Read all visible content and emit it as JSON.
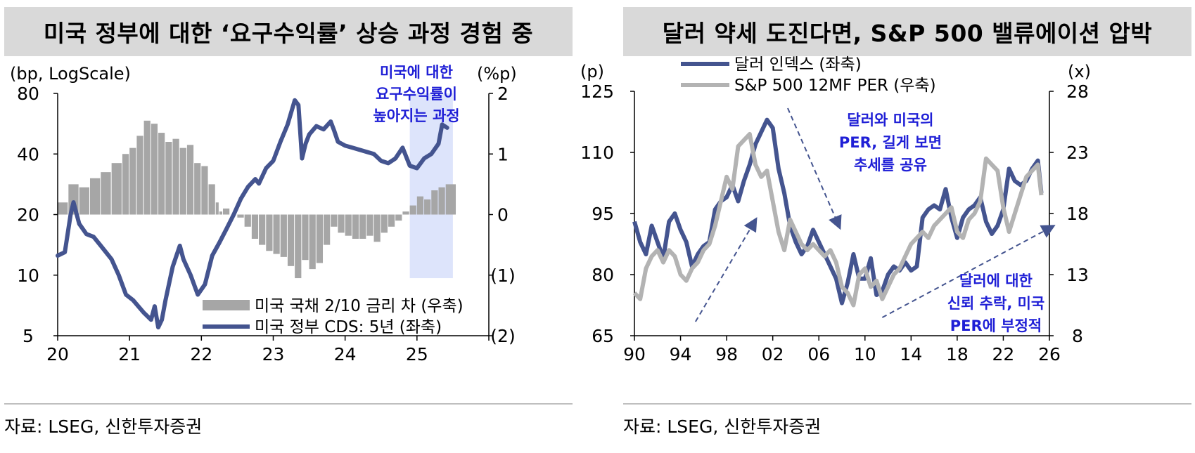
{
  "left": {
    "title": "미국 정부에 대한 ‘요구수익률’ 상승 과정 경험 중",
    "source": "자료: LSEG, 신한투자증권",
    "chart_data": {
      "type": "line",
      "title": "미국 정부에 대한 ‘요구수익률’ 상승 과정 경험 중",
      "y_left_unit": "(bp, LogScale)",
      "y_right_unit": "(%p)",
      "y_left_scale": "log",
      "y_left_ticks": [
        "80",
        "40",
        "20",
        "10",
        "5"
      ],
      "y_left_tick_values": [
        80,
        40,
        20,
        10,
        5
      ],
      "y_right_ticks": [
        "2",
        "1",
        "0",
        "(1)",
        "(2)"
      ],
      "y_right_tick_values": [
        2,
        1,
        0,
        -1,
        -2
      ],
      "x_ticks": [
        "20",
        "21",
        "22",
        "23",
        "24",
        "25"
      ],
      "x_tick_values": [
        2020,
        2021,
        2022,
        2023,
        2024,
        2025
      ],
      "xlim": [
        2020,
        2026
      ],
      "ylim_left": [
        5,
        80
      ],
      "ylim_right": [
        -2,
        2
      ],
      "legend_position": "bottom-right",
      "highlight": {
        "x_range": [
          2024.9,
          2025.5
        ],
        "color": "#dde4fb"
      },
      "annotation": "미국에 대한\n요구수익률이\n높아지는 과정",
      "annotation_color": "#1f1fd6",
      "series": [
        {
          "name": "미국 국채 2/10 금리 차 (우축)",
          "axis": "right",
          "style": "bar",
          "color": "#a6a6a6",
          "x": [
            2020.0,
            2020.15,
            2020.3,
            2020.45,
            2020.6,
            2020.75,
            2020.9,
            2021.0,
            2021.1,
            2021.2,
            2021.3,
            2021.4,
            2021.5,
            2021.6,
            2021.7,
            2021.8,
            2021.9,
            2022.0,
            2022.1,
            2022.2,
            2022.25,
            2022.3,
            2022.4,
            2022.5,
            2022.6,
            2022.7,
            2022.8,
            2022.9,
            2023.0,
            2023.1,
            2023.2,
            2023.3,
            2023.4,
            2023.5,
            2023.6,
            2023.7,
            2023.8,
            2023.9,
            2024.0,
            2024.1,
            2024.2,
            2024.3,
            2024.4,
            2024.5,
            2024.6,
            2024.7,
            2024.8,
            2024.9,
            2025.0,
            2025.1,
            2025.2,
            2025.3,
            2025.4
          ],
          "values": [
            0.2,
            0.5,
            0.45,
            0.6,
            0.7,
            0.85,
            1.0,
            1.1,
            1.3,
            1.55,
            1.5,
            1.35,
            1.2,
            1.25,
            1.1,
            1.15,
            0.85,
            0.8,
            0.5,
            0.2,
            0.05,
            0.1,
            0.0,
            -0.05,
            -0.2,
            -0.4,
            -0.5,
            -0.6,
            -0.65,
            -0.7,
            -0.85,
            -1.05,
            -0.75,
            -0.9,
            -0.8,
            -0.5,
            -0.2,
            -0.3,
            -0.35,
            -0.4,
            -0.4,
            -0.35,
            -0.45,
            -0.3,
            -0.2,
            -0.1,
            0.05,
            0.15,
            0.3,
            0.25,
            0.4,
            0.45,
            0.5
          ]
        },
        {
          "name": "미국 정부 CDS: 5년 (좌축)",
          "axis": "left",
          "style": "line",
          "color": "#44548f",
          "x": [
            2020.0,
            2020.1,
            2020.18,
            2020.22,
            2020.3,
            2020.4,
            2020.5,
            2020.6,
            2020.75,
            2020.85,
            2020.95,
            2021.05,
            2021.2,
            2021.3,
            2021.35,
            2021.4,
            2021.45,
            2021.5,
            2021.6,
            2021.7,
            2021.75,
            2021.85,
            2021.95,
            2022.05,
            2022.15,
            2022.25,
            2022.35,
            2022.45,
            2022.55,
            2022.65,
            2022.75,
            2022.8,
            2022.9,
            2023.0,
            2023.1,
            2023.2,
            2023.3,
            2023.35,
            2023.4,
            2023.45,
            2023.5,
            2023.6,
            2023.7,
            2023.8,
            2023.85,
            2023.9,
            2024.0,
            2024.1,
            2024.2,
            2024.3,
            2024.4,
            2024.5,
            2024.6,
            2024.7,
            2024.8,
            2024.9,
            2025.0,
            2025.1,
            2025.2,
            2025.3,
            2025.35,
            2025.42
          ],
          "values": [
            12.5,
            13.0,
            20.0,
            23.0,
            18.0,
            16.0,
            15.5,
            14.0,
            12.0,
            10.0,
            8.0,
            7.5,
            6.5,
            6.0,
            7.0,
            5.5,
            6.0,
            7.5,
            11.0,
            14.0,
            12.0,
            10.0,
            8.0,
            9.0,
            12.5,
            14.5,
            17.0,
            20.0,
            24.0,
            27.5,
            30.0,
            28.5,
            34.0,
            37.0,
            46.0,
            56.0,
            74.0,
            70.0,
            38.0,
            45.0,
            50.0,
            55.0,
            53.0,
            58.0,
            52.0,
            46.0,
            44.0,
            43.0,
            42.0,
            41.0,
            40.0,
            37.0,
            36.0,
            38.0,
            43.0,
            35.0,
            34.0,
            38.0,
            40.0,
            45.0,
            56.0,
            54.0
          ]
        }
      ]
    }
  },
  "right": {
    "title": "달러 약세 도진다면, S&P 500 밸류에이션 압박",
    "source": "자료: LSEG, 신한투자증권",
    "chart_data": {
      "type": "line",
      "title": "달러 약세 도진다면, S&P 500 밸류에이션 압박",
      "y_left_unit": "(p)",
      "y_right_unit": "(x)",
      "y_left_ticks": [
        "125",
        "110",
        "95",
        "80",
        "65"
      ],
      "y_left_tick_values": [
        125,
        110,
        95,
        80,
        65
      ],
      "y_right_ticks": [
        "28",
        "23",
        "18",
        "13",
        "8"
      ],
      "y_right_tick_values": [
        28,
        23,
        18,
        13,
        8
      ],
      "x_ticks": [
        "90",
        "94",
        "98",
        "02",
        "06",
        "10",
        "14",
        "18",
        "22",
        "26"
      ],
      "x_tick_values": [
        1990,
        1994,
        1998,
        2002,
        2006,
        2010,
        2014,
        2018,
        2022,
        2026
      ],
      "xlim": [
        1990,
        2026
      ],
      "ylim_left": [
        65,
        125
      ],
      "ylim_right": [
        8,
        28
      ],
      "legend_position": "top-center",
      "annotations": [
        {
          "text": "달러와 미국의\nPER, 길게 보면\n추세를 공유",
          "color": "#1f1fd6"
        },
        {
          "text": "달러에 대한\n신뢰 추락, 미국\nPER에 부정적",
          "color": "#1f1fd6"
        }
      ],
      "series": [
        {
          "name": "달러 인덱스 (좌축)",
          "axis": "left",
          "color": "#44548f",
          "x": [
            1990.0,
            1990.5,
            1991.0,
            1991.5,
            1992.0,
            1992.5,
            1993.0,
            1993.5,
            1994.0,
            1994.5,
            1995.0,
            1995.5,
            1996.0,
            1996.5,
            1997.0,
            1997.5,
            1998.0,
            1998.5,
            1999.0,
            1999.5,
            2000.0,
            2000.5,
            2001.0,
            2001.5,
            2002.0,
            2002.5,
            2003.0,
            2003.5,
            2004.0,
            2004.5,
            2005.0,
            2005.5,
            2006.0,
            2006.5,
            2007.0,
            2007.5,
            2008.0,
            2008.5,
            2009.0,
            2009.5,
            2010.0,
            2010.5,
            2011.0,
            2011.5,
            2012.0,
            2012.5,
            2013.0,
            2013.5,
            2014.0,
            2014.5,
            2015.0,
            2015.5,
            2016.0,
            2016.5,
            2017.0,
            2017.5,
            2018.0,
            2018.5,
            2019.0,
            2019.5,
            2020.0,
            2020.5,
            2021.0,
            2021.5,
            2022.0,
            2022.5,
            2023.0,
            2023.5,
            2024.0,
            2024.5,
            2025.0,
            2025.3
          ],
          "values": [
            93,
            88,
            85,
            92,
            88,
            84,
            93,
            95,
            91,
            88,
            82,
            85,
            87,
            88,
            96,
            98,
            99,
            102,
            98,
            103,
            107,
            112,
            115,
            118,
            116,
            106,
            100,
            92,
            88,
            85,
            87,
            91,
            88,
            85,
            82,
            79,
            73,
            78,
            85,
            79,
            79,
            84,
            75,
            76,
            80,
            82,
            81,
            83,
            81,
            82,
            94,
            96,
            97,
            96,
            101,
            94,
            89,
            94,
            96,
            97,
            99,
            93,
            90,
            92,
            96,
            106,
            103,
            102,
            103,
            106,
            108,
            100
          ]
        },
        {
          "name": "S&P 500 12MF PER (우축)",
          "axis": "right",
          "color": "#b3b3b3",
          "x": [
            1990.0,
            1990.5,
            1991.0,
            1991.5,
            1992.0,
            1992.5,
            1993.0,
            1993.5,
            1994.0,
            1994.5,
            1995.0,
            1995.5,
            1996.0,
            1996.5,
            1997.0,
            1997.5,
            1998.0,
            1998.5,
            1999.0,
            1999.5,
            2000.0,
            2000.5,
            2001.0,
            2001.5,
            2002.0,
            2002.5,
            2003.0,
            2003.5,
            2004.0,
            2004.5,
            2005.0,
            2005.5,
            2006.0,
            2006.5,
            2007.0,
            2007.5,
            2008.0,
            2008.5,
            2009.0,
            2009.5,
            2010.0,
            2010.5,
            2011.0,
            2011.5,
            2012.0,
            2012.5,
            2013.0,
            2013.5,
            2014.0,
            2014.5,
            2015.0,
            2015.5,
            2016.0,
            2016.5,
            2017.0,
            2017.5,
            2018.0,
            2018.5,
            2019.0,
            2019.5,
            2020.0,
            2020.5,
            2021.0,
            2021.5,
            2022.0,
            2022.5,
            2023.0,
            2023.5,
            2024.0,
            2024.5,
            2025.0,
            2025.3
          ],
          "values": [
            11.5,
            11.0,
            13.5,
            14.5,
            15.0,
            14.0,
            15.0,
            14.5,
            13.0,
            12.5,
            13.5,
            14.0,
            15.0,
            15.5,
            17.0,
            19.0,
            21.0,
            20.0,
            23.5,
            24.0,
            24.5,
            22.0,
            21.0,
            21.5,
            19.0,
            16.5,
            15.0,
            17.5,
            16.5,
            15.5,
            15.0,
            15.5,
            15.0,
            14.5,
            15.0,
            14.0,
            12.0,
            11.5,
            10.5,
            13.0,
            13.5,
            12.0,
            12.5,
            11.0,
            12.0,
            13.0,
            13.5,
            14.5,
            15.5,
            16.0,
            16.5,
            16.0,
            17.0,
            17.5,
            18.0,
            18.5,
            16.5,
            16.0,
            17.5,
            18.0,
            19.0,
            22.5,
            22.0,
            21.5,
            18.5,
            16.5,
            18.0,
            19.5,
            21.0,
            21.5,
            22.0,
            19.5
          ]
        }
      ]
    }
  }
}
